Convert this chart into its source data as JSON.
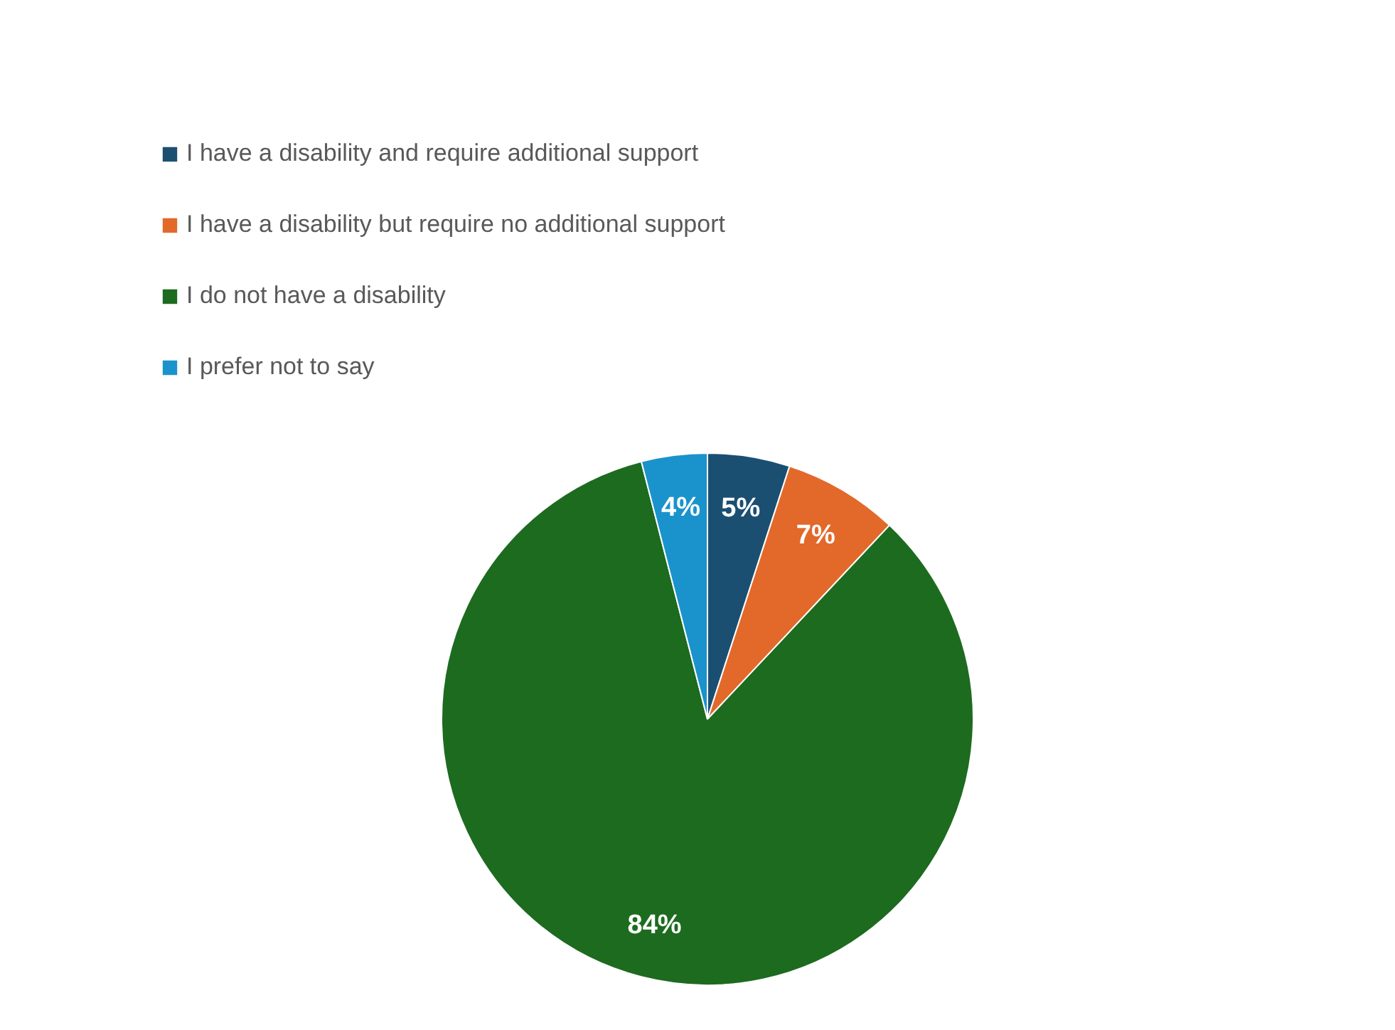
{
  "chart_data": {
    "type": "pie",
    "categories": [
      "I have a disability and require additional support",
      "I have a disability but require no additional support",
      "I do not have a disability",
      "I prefer not to say"
    ],
    "values": [
      5,
      7,
      84,
      4
    ],
    "colors": [
      "#1b4f72",
      "#e2692a",
      "#1c6b1f",
      "#1a93cc"
    ],
    "value_labels": [
      "5%",
      "7%",
      "84%",
      "4%"
    ],
    "legend": "top"
  }
}
